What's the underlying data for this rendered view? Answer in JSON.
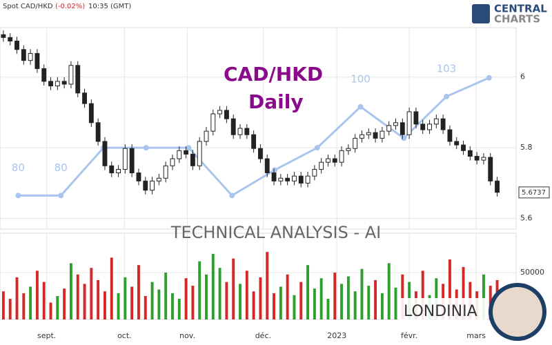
{
  "chart_data": {
    "type": "candlestick",
    "header": {
      "symbol": "Spot CAD/HKD",
      "change": "(-0.02%)",
      "time": "10:35 (GMT)"
    },
    "logo": [
      "CENTRAL",
      "CHARTS"
    ],
    "watermark": {
      "title": "CAD/HKD",
      "subtitle": "Daily",
      "banner": "TECHNICAL  ANALYSIS - AI",
      "brand": "LONDINIA"
    },
    "xlim": [
      -0.5,
      75.8
    ],
    "xticks": [
      {
        "value": 6.4,
        "label": "sept."
      },
      {
        "value": 17.9,
        "label": "oct."
      },
      {
        "value": 27.2,
        "label": "nov."
      },
      {
        "value": 38.4,
        "label": "déc."
      },
      {
        "value": 49.3,
        "label": "2023"
      },
      {
        "value": 60,
        "label": "févr."
      },
      {
        "value": 69.9,
        "label": "mars"
      }
    ],
    "ylim": [
      5.57,
      6.14
    ],
    "yticks": [
      5.6,
      5.8,
      6
    ],
    "grid": true,
    "up_color": "#2ca02c",
    "down_color": "#d62728",
    "last_price": 5.6737,
    "open": [
      6.12,
      6.112,
      6.102,
      6.078,
      6.047,
      6.067,
      6.024,
      5.988,
      5.975,
      5.988,
      5.98,
      6.033,
      5.955,
      5.925,
      5.871,
      5.818,
      5.749,
      5.729,
      5.739,
      5.798,
      5.729,
      5.706,
      5.68,
      5.706,
      5.714,
      5.749,
      5.769,
      5.792,
      5.782,
      5.749,
      5.818,
      5.847,
      5.896,
      5.906,
      5.882,
      5.837,
      5.855,
      5.837,
      5.798,
      5.769,
      5.729,
      5.706,
      5.714,
      5.706,
      5.72,
      5.7,
      5.72,
      5.739,
      5.759,
      5.769,
      5.759,
      5.792,
      5.798,
      5.827,
      5.837,
      5.843,
      5.827,
      5.847,
      5.863,
      5.871,
      5.837,
      5.902,
      5.867,
      5.851,
      5.867,
      5.882,
      5.851,
      5.818,
      5.808,
      5.792,
      5.776,
      5.765,
      5.773,
      5.706
    ],
    "high": [
      6.132,
      6.124,
      6.114,
      6.09,
      6.079,
      6.079,
      6.036,
      6.0,
      6.0,
      6.0,
      6.045,
      6.045,
      5.967,
      5.937,
      5.883,
      5.83,
      5.761,
      5.751,
      5.81,
      5.81,
      5.741,
      5.718,
      5.718,
      5.726,
      5.761,
      5.781,
      5.804,
      5.804,
      5.794,
      5.83,
      5.859,
      5.908,
      5.918,
      5.918,
      5.894,
      5.867,
      5.867,
      5.849,
      5.81,
      5.781,
      5.741,
      5.726,
      5.726,
      5.732,
      5.732,
      5.732,
      5.751,
      5.771,
      5.781,
      5.781,
      5.804,
      5.81,
      5.839,
      5.849,
      5.855,
      5.855,
      5.859,
      5.875,
      5.883,
      5.883,
      5.914,
      5.914,
      5.879,
      5.879,
      5.894,
      5.894,
      5.863,
      5.83,
      5.82,
      5.804,
      5.788,
      5.785,
      5.785,
      5.718
    ],
    "low": [
      6.1,
      6.09,
      6.066,
      6.035,
      6.035,
      6.012,
      5.976,
      5.963,
      5.963,
      5.968,
      5.968,
      5.943,
      5.913,
      5.859,
      5.806,
      5.737,
      5.717,
      5.717,
      5.727,
      5.717,
      5.694,
      5.668,
      5.668,
      5.694,
      5.702,
      5.737,
      5.757,
      5.77,
      5.737,
      5.737,
      5.806,
      5.835,
      5.884,
      5.87,
      5.825,
      5.825,
      5.825,
      5.786,
      5.757,
      5.717,
      5.694,
      5.694,
      5.694,
      5.694,
      5.688,
      5.688,
      5.708,
      5.727,
      5.747,
      5.747,
      5.747,
      5.78,
      5.786,
      5.815,
      5.825,
      5.815,
      5.815,
      5.835,
      5.851,
      5.825,
      5.825,
      5.855,
      5.839,
      5.839,
      5.855,
      5.839,
      5.806,
      5.796,
      5.78,
      5.764,
      5.753,
      5.753,
      5.694,
      5.662
    ],
    "close": [
      6.112,
      6.102,
      6.078,
      6.047,
      6.067,
      6.024,
      5.988,
      5.975,
      5.988,
      5.98,
      6.033,
      5.955,
      5.925,
      5.871,
      5.818,
      5.749,
      5.729,
      5.739,
      5.798,
      5.729,
      5.706,
      5.68,
      5.706,
      5.714,
      5.749,
      5.769,
      5.792,
      5.782,
      5.749,
      5.818,
      5.847,
      5.896,
      5.906,
      5.882,
      5.837,
      5.855,
      5.837,
      5.798,
      5.769,
      5.729,
      5.706,
      5.714,
      5.706,
      5.72,
      5.7,
      5.72,
      5.739,
      5.759,
      5.769,
      5.759,
      5.792,
      5.798,
      5.827,
      5.837,
      5.843,
      5.827,
      5.847,
      5.863,
      5.871,
      5.837,
      5.902,
      5.867,
      5.851,
      5.867,
      5.882,
      5.851,
      5.818,
      5.808,
      5.792,
      5.776,
      5.765,
      5.773,
      5.706,
      5.674
    ],
    "volume": [
      30000,
      22000,
      45000,
      28000,
      35000,
      52000,
      40000,
      18000,
      25000,
      33000,
      60000,
      48000,
      38000,
      55000,
      42000,
      30000,
      66000,
      28000,
      45000,
      35000,
      58000,
      25000,
      40000,
      32000,
      50000,
      28000,
      22000,
      44000,
      36000,
      62000,
      48000,
      70000,
      55000,
      40000,
      65000,
      38000,
      52000,
      30000,
      45000,
      72000,
      28000,
      35000,
      48000,
      26000,
      40000,
      58000,
      33000,
      44000,
      22000,
      50000,
      38000,
      46000,
      30000,
      54000,
      36000,
      42000,
      28000,
      60000,
      34000,
      48000,
      40000,
      30000,
      52000,
      26000,
      44000,
      38000,
      64000,
      32000,
      56000,
      40000,
      30000,
      48000,
      36000,
      42000
    ],
    "volume_lim": [
      0,
      92000
    ],
    "volume_ticks": [
      50000
    ],
    "ai_line": {
      "color": "#a9c4ee",
      "x": [
        2.2,
        8.5,
        14.8,
        21.1,
        27.4,
        33.8,
        40.1,
        46.4,
        52.8,
        59.2,
        65.5,
        71.8
      ],
      "values": [
        5.665,
        5.665,
        5.8,
        5.8,
        5.8,
        5.665,
        5.737,
        5.8,
        5.916,
        5.827,
        5.945,
        5.998
      ],
      "labels": [
        "80",
        "80",
        "100",
        "103"
      ]
    }
  }
}
